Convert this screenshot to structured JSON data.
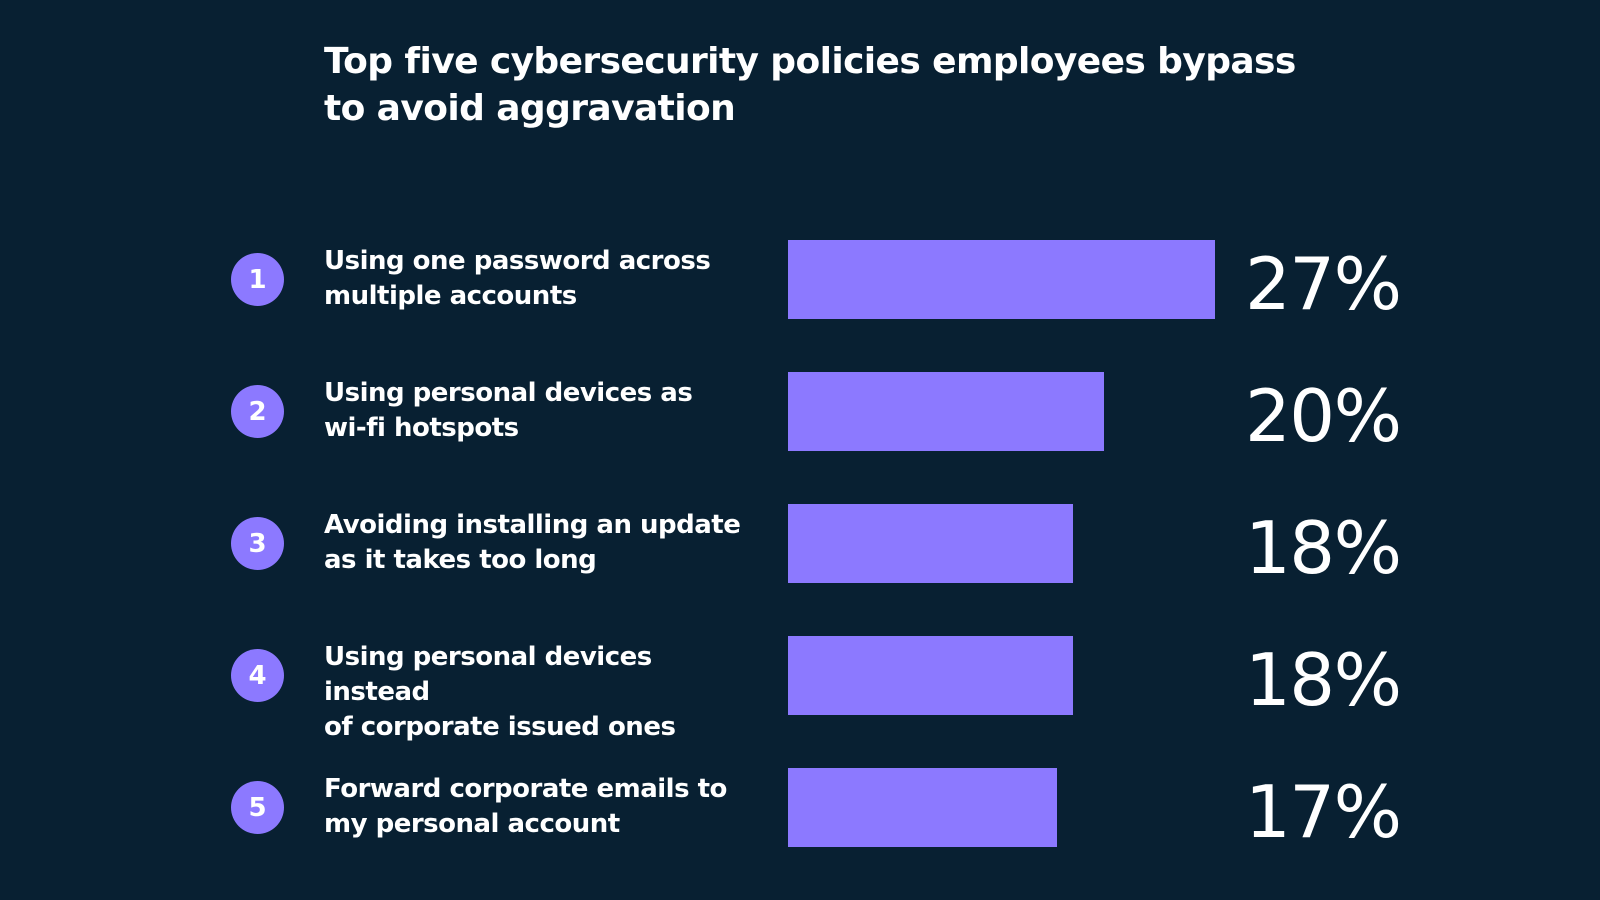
{
  "colors": {
    "background": "#082032",
    "accent": "#8c79ff",
    "text": "#ffffff"
  },
  "chart_data": {
    "type": "bar",
    "orientation": "horizontal",
    "title": "Top five cybersecurity policies employees bypass to avoid aggravation",
    "categories": [
      "Using one password across\nmultiple accounts",
      "Using personal devices as\nwi-fi hotspots",
      "Avoiding installing an update\nas it takes too long",
      "Using personal devices instead\nof corporate issued ones",
      "Forward corporate emails to\nmy personal account"
    ],
    "ranks": [
      "1",
      "2",
      "3",
      "4",
      "5"
    ],
    "values": [
      27,
      20,
      18,
      18,
      17
    ],
    "value_labels": [
      "27%",
      "20%",
      "18%",
      "18%",
      "17%"
    ],
    "xlim": [
      0,
      27
    ],
    "grid": false,
    "legend": "none"
  }
}
